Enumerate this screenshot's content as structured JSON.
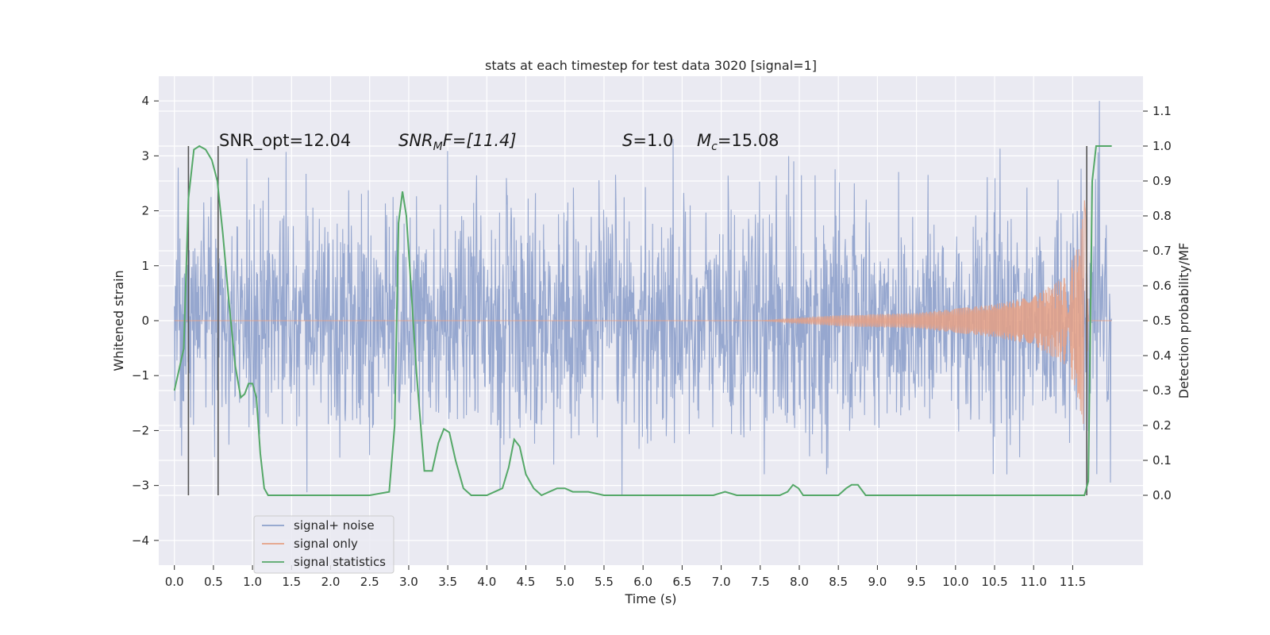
{
  "chart_data": {
    "type": "line",
    "title": "stats at each timestep for test data 3020 [signal=1]",
    "xlabel": "Time (s)",
    "ylabel_left": "Whitened strain",
    "ylabel_right": "Detection probability/MF",
    "xlim": [
      -0.2,
      12.4
    ],
    "ylim_left": [
      -4.45,
      4.45
    ],
    "ylim_right": [
      -0.2,
      1.2
    ],
    "x_ticks": [
      "0.0",
      "0.5",
      "1.0",
      "1.5",
      "2.0",
      "2.5",
      "3.0",
      "3.5",
      "4.0",
      "4.5",
      "5.0",
      "5.5",
      "6.0",
      "6.5",
      "7.0",
      "7.5",
      "8.0",
      "8.5",
      "9.0",
      "9.5",
      "10.0",
      "10.5",
      "11.0",
      "11.5"
    ],
    "y_left_ticks": [
      "4",
      "3",
      "2",
      "1",
      "0",
      "−1",
      "−2",
      "−3",
      "−4"
    ],
    "y_right_ticks": [
      "1.1",
      "1.0",
      "0.9",
      "0.8",
      "0.7",
      "0.6",
      "0.5",
      "0.4",
      "0.3",
      "0.2",
      "0.1",
      "0.0"
    ],
    "grid": true,
    "legend_position": "bottom-left",
    "annotations": {
      "snr_opt": "SNR_opt=12.04",
      "snr_mf_pre": "SNR",
      "snr_mf_sub": "M",
      "snr_mf_post": "F=[11.4]",
      "s_main": "S",
      "s_val": "=1.0",
      "mc_main": "M",
      "mc_sub": "c",
      "mc_val": "=15.08"
    },
    "series": [
      {
        "name": "signal+ noise",
        "color": "#8da0cb",
        "axis": "left",
        "x_range": [
          0.0,
          12.0
        ],
        "envelope": {
          "typical_abs": 1.7,
          "peak_abs": 4.0
        }
      },
      {
        "name": "signal only",
        "color": "#e5a085",
        "axis": "left",
        "x_range": [
          0.0,
          12.0
        ],
        "envelope_points": [
          [
            7.5,
            0.0
          ],
          [
            8.5,
            0.1
          ],
          [
            9.5,
            0.14
          ],
          [
            10.5,
            0.3
          ],
          [
            11.0,
            0.45
          ],
          [
            11.4,
            0.8
          ],
          [
            11.55,
            1.3
          ],
          [
            11.62,
            1.8
          ],
          [
            11.66,
            2.3
          ],
          [
            11.7,
            0.0
          ]
        ]
      },
      {
        "name": "signal statistics",
        "color": "#55a868",
        "axis": "right",
        "x": [
          0.0,
          0.12,
          0.18,
          0.25,
          0.32,
          0.4,
          0.48,
          0.55,
          0.62,
          0.7,
          0.78,
          0.85,
          0.9,
          0.95,
          1.0,
          1.05,
          1.1,
          1.15,
          1.2,
          1.3,
          1.5,
          2.0,
          2.5,
          2.75,
          2.82,
          2.87,
          2.92,
          2.97,
          3.02,
          3.1,
          3.2,
          3.3,
          3.38,
          3.45,
          3.52,
          3.6,
          3.7,
          3.8,
          3.9,
          4.0,
          4.1,
          4.2,
          4.28,
          4.35,
          4.42,
          4.5,
          4.6,
          4.7,
          4.8,
          4.9,
          5.0,
          5.1,
          5.2,
          5.3,
          5.5,
          5.7,
          6.0,
          6.3,
          6.6,
          6.9,
          7.05,
          7.2,
          7.5,
          7.75,
          7.85,
          7.92,
          7.99,
          8.05,
          8.15,
          8.5,
          8.6,
          8.67,
          8.75,
          8.85,
          9.0,
          9.5,
          10.0,
          10.5,
          11.0,
          11.5,
          11.65,
          11.7,
          11.75,
          11.8,
          11.85,
          11.9,
          12.0
        ],
        "y": [
          0.3,
          0.42,
          0.85,
          0.99,
          1.0,
          0.99,
          0.96,
          0.9,
          0.75,
          0.55,
          0.37,
          0.28,
          0.29,
          0.32,
          0.32,
          0.28,
          0.12,
          0.02,
          0.0,
          0.0,
          0.0,
          0.0,
          0.0,
          0.01,
          0.2,
          0.78,
          0.87,
          0.8,
          0.63,
          0.35,
          0.07,
          0.07,
          0.15,
          0.19,
          0.18,
          0.1,
          0.02,
          0.0,
          0.0,
          0.0,
          0.01,
          0.02,
          0.08,
          0.16,
          0.14,
          0.06,
          0.02,
          0.0,
          0.01,
          0.02,
          0.02,
          0.01,
          0.01,
          0.01,
          0.0,
          0.0,
          0.0,
          0.0,
          0.0,
          0.0,
          0.01,
          0.0,
          0.0,
          0.0,
          0.01,
          0.03,
          0.02,
          0.0,
          0.0,
          0.0,
          0.02,
          0.03,
          0.03,
          0.0,
          0.0,
          0.0,
          0.0,
          0.0,
          0.0,
          0.0,
          0.0,
          0.04,
          0.9,
          1.0,
          1.0,
          1.0,
          1.0
        ]
      }
    ],
    "vertical_markers_x": [
      0.18,
      0.56,
      11.68
    ]
  }
}
